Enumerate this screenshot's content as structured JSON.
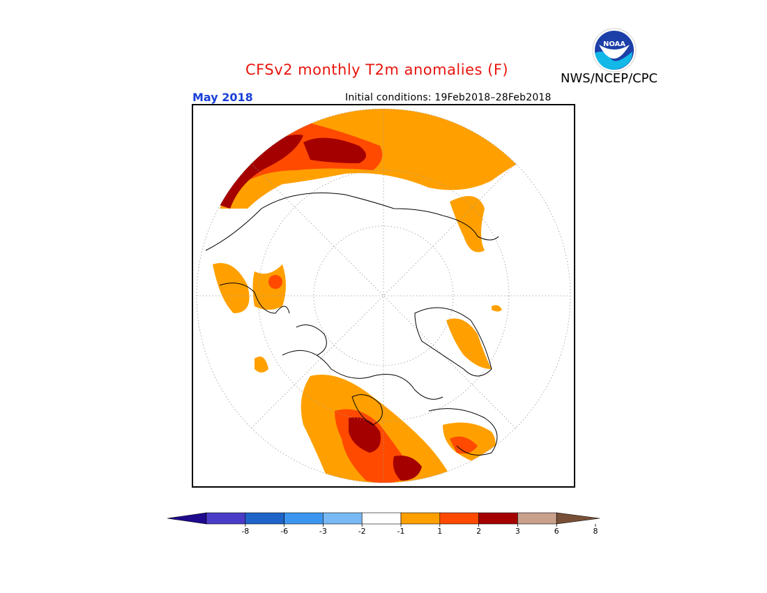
{
  "header": {
    "title": "CFSv2 monthly T2m anomalies (F)",
    "agency": "NWS/NCEP/CPC",
    "logo_text": "NOAA",
    "month": "May 2018",
    "initial_conditions": "Initial conditions: 19Feb2018–28Feb2018"
  },
  "map": {
    "projection": "north-polar-stereographic",
    "variable": "T2m anomalies",
    "dominant_signal": "warm anomalies over Canada, the northern Atlantic, Europe and Siberia"
  },
  "legend": {
    "tick_labels": [
      "-8",
      "-6",
      "-3",
      "-2",
      "-1",
      "1",
      "2",
      "3",
      "6",
      "8"
    ],
    "colors": [
      "#1e0a8c",
      "#4b3cc8",
      "#1f64c8",
      "#3c96f0",
      "#78b9f5",
      "#ffffff",
      "#ffa000",
      "#ff4a00",
      "#a50000",
      "#c8a08c",
      "#785038"
    ],
    "colors_meaning": "bins from below -8 (dark purple) through near-zero (white) to above 8 (brown)"
  }
}
